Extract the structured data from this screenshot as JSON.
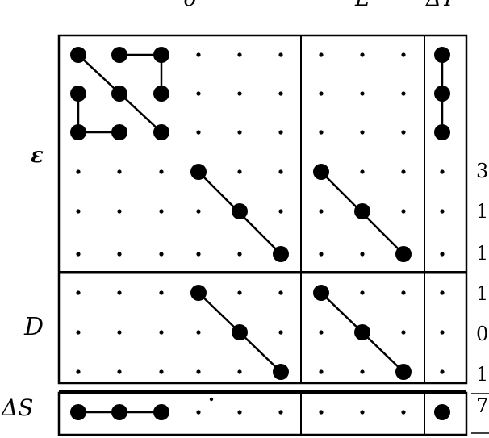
{
  "column_labels": {
    "delta": "δ",
    "e": "E",
    "delta_t": "ΔT"
  },
  "row_labels": {
    "epsilon": "ε",
    "d": "D",
    "delta_s": "ΔS"
  },
  "row_values": [
    "3",
    "1",
    "1",
    "1",
    "0",
    "1",
    "7"
  ],
  "colors": {
    "ink": "#000000",
    "background": "#ffffff"
  }
}
